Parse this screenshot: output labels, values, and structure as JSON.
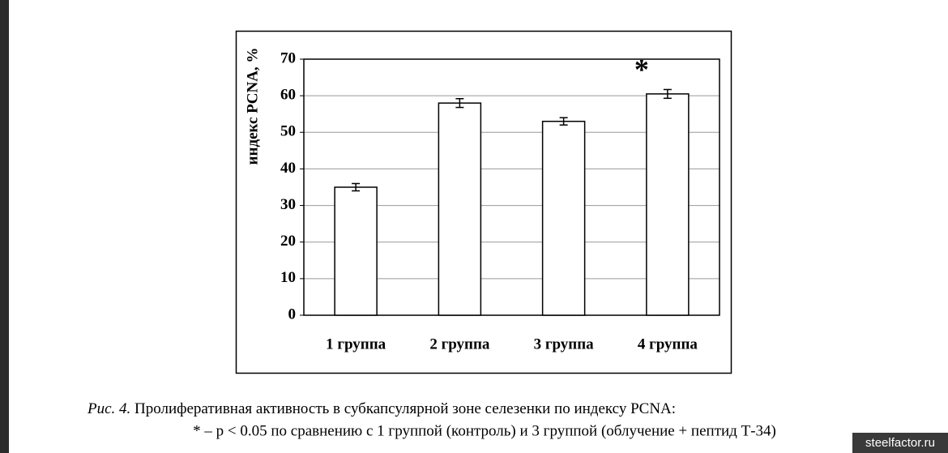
{
  "chart_data": {
    "type": "bar",
    "y_label": "индекс PCNA, %",
    "categories": [
      "1 группа",
      "2 группа",
      "3 группа",
      "4 группа"
    ],
    "values": [
      35,
      58,
      53,
      60.5
    ],
    "errors": [
      1,
      1.2,
      1,
      1.2
    ],
    "color": "#ffffff",
    "ylim": [
      0,
      70
    ],
    "yticks": [
      0,
      10,
      20,
      30,
      40,
      50,
      60,
      70
    ],
    "grid": true,
    "annotations": [
      {
        "text": "*",
        "category": "4 группа"
      }
    ]
  },
  "caption": {
    "label": "Рис. 4.",
    "text": "Пролиферативная активность в субкапсулярной зоне селезенки по индексу PCNA:",
    "note": "* – p < 0.05 по сравнению с 1 группой (контроль) и 3 группой (облучение + пептид Т-34)"
  },
  "watermark": "steelfactor.ru"
}
